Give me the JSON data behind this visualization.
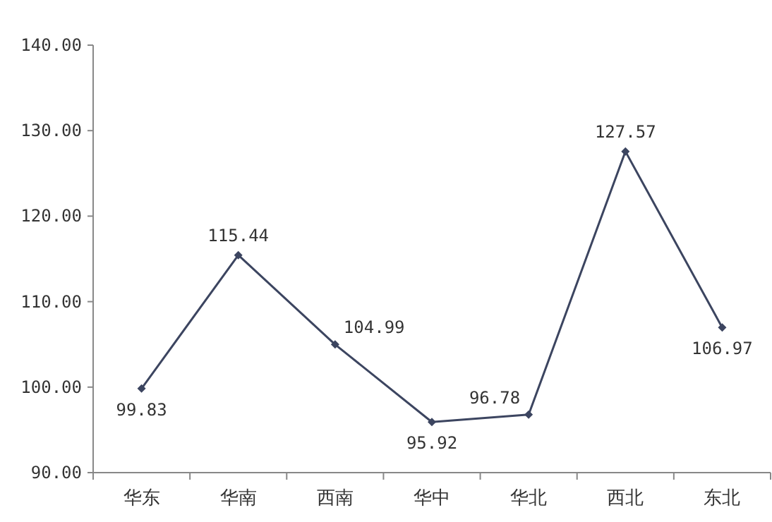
{
  "chart_data": {
    "type": "line",
    "categories": [
      "华东",
      "华南",
      "西南",
      "华中",
      "华北",
      "西北",
      "东北"
    ],
    "series": [
      {
        "color": "#3c4560",
        "values": [
          99.83,
          115.44,
          104.99,
          95.92,
          96.78,
          127.57,
          106.97
        ]
      }
    ],
    "ylim": [
      90,
      140
    ],
    "yticks": [
      {
        "value": 90,
        "label": "90.00"
      },
      {
        "value": 100,
        "label": "100.00"
      },
      {
        "value": 110,
        "label": "110.00"
      },
      {
        "value": 120,
        "label": "120.00"
      },
      {
        "value": 130,
        "label": "130.00"
      },
      {
        "value": 140,
        "label": "140.00"
      }
    ],
    "data_labels": true,
    "marker": "diamond",
    "line_style": "solid",
    "grid": false
  }
}
